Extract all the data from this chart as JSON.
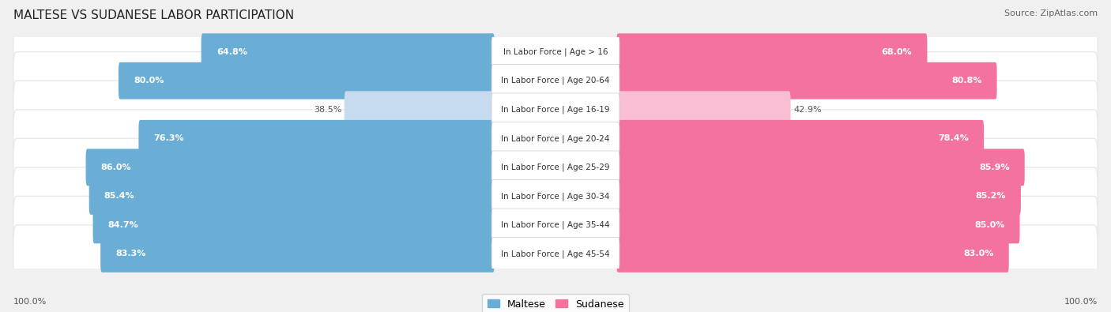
{
  "title": "MALTESE VS SUDANESE LABOR PARTICIPATION",
  "source": "Source: ZipAtlas.com",
  "categories": [
    "In Labor Force | Age > 16",
    "In Labor Force | Age 20-64",
    "In Labor Force | Age 16-19",
    "In Labor Force | Age 20-24",
    "In Labor Force | Age 25-29",
    "In Labor Force | Age 30-34",
    "In Labor Force | Age 35-44",
    "In Labor Force | Age 45-54"
  ],
  "maltese_values": [
    64.8,
    80.0,
    38.5,
    76.3,
    86.0,
    85.4,
    84.7,
    83.3
  ],
  "sudanese_values": [
    68.0,
    80.8,
    42.9,
    78.4,
    85.9,
    85.2,
    85.0,
    83.0
  ],
  "maltese_color_strong": "#6aaed6",
  "maltese_color_light": "#c6dcee",
  "sudanese_color_strong": "#f472a0",
  "sudanese_color_light": "#f9bdd4",
  "row_bg": "#e8e8e8",
  "title_fontsize": 11,
  "legend_fontsize": 9,
  "value_fontsize": 8,
  "label_fontsize": 7.5
}
